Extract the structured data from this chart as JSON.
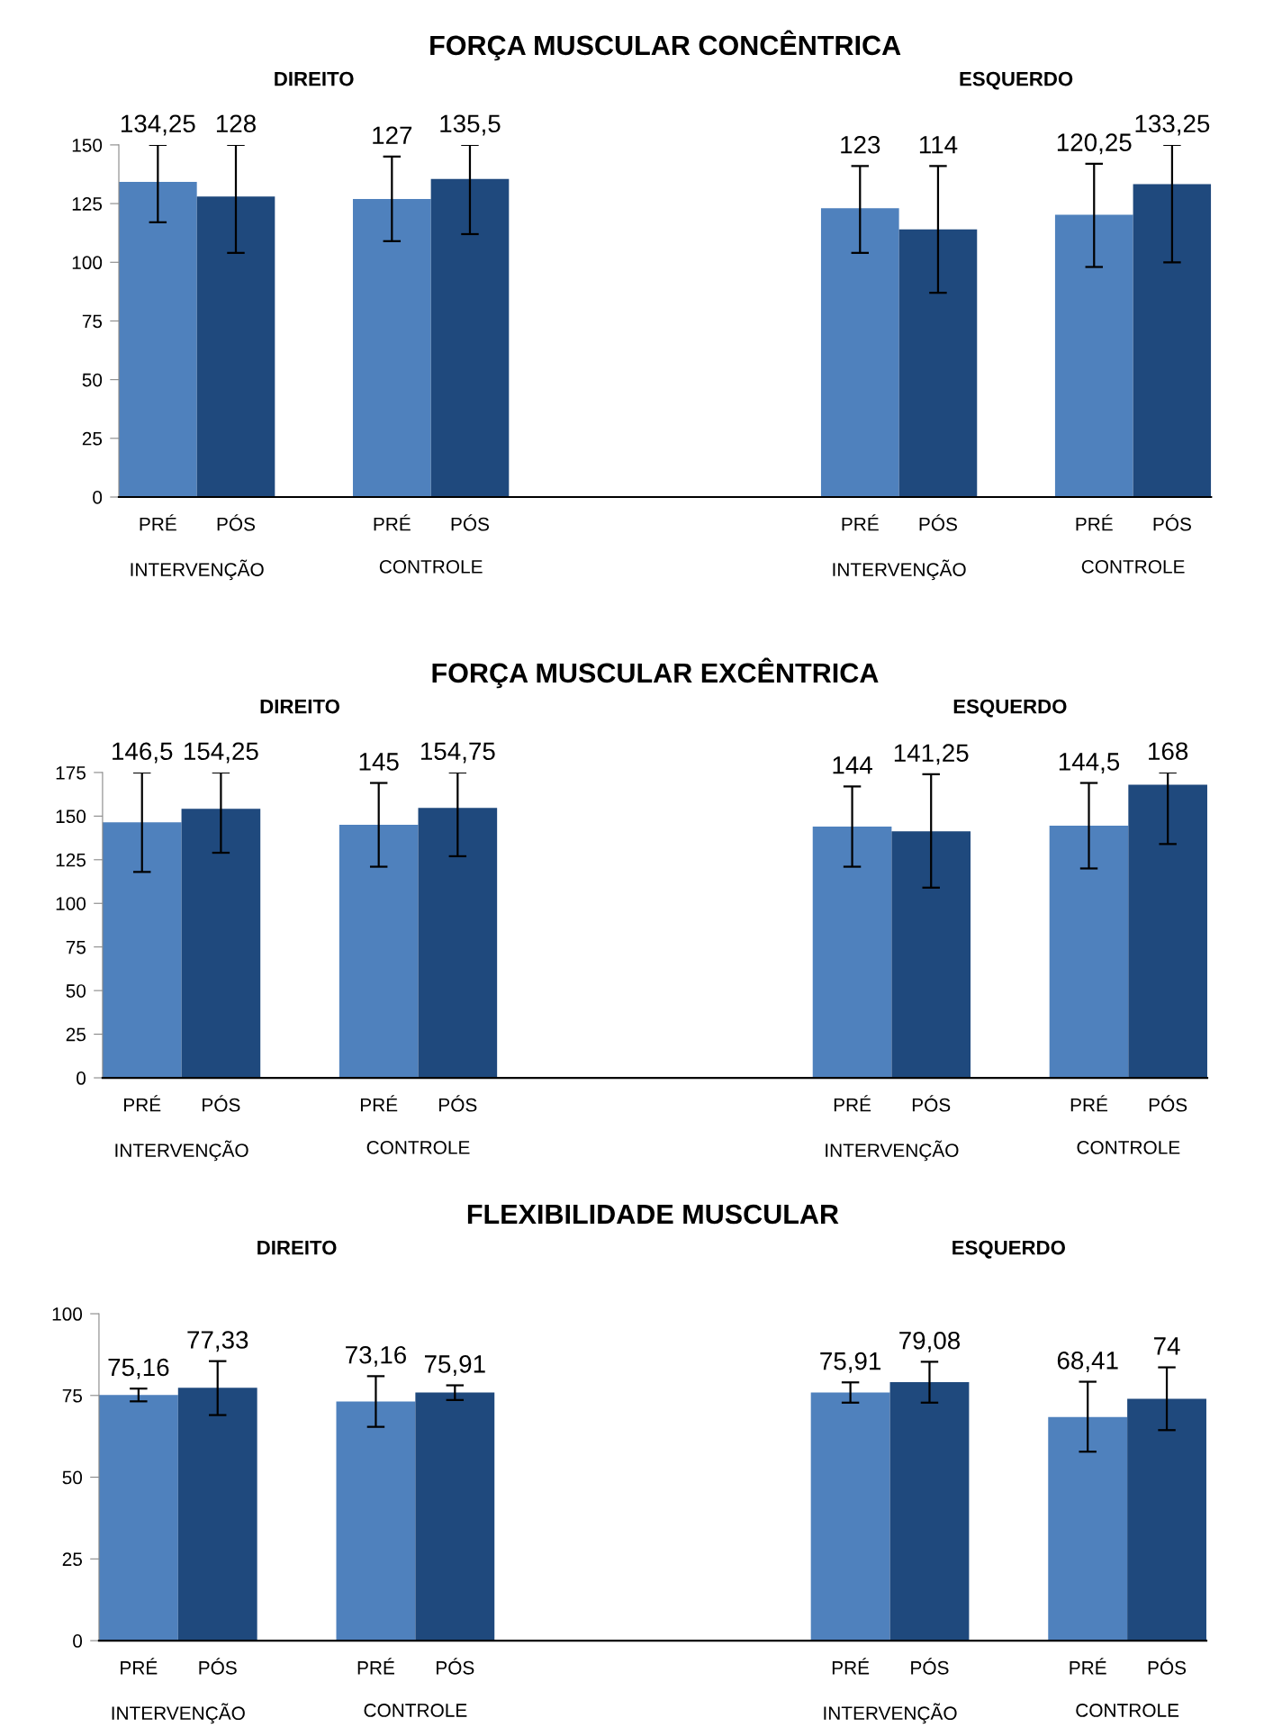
{
  "chart_data": [
    {
      "type": "bar",
      "title": "FORÇA MUSCULAR CONCÊNTRICA",
      "categories": [
        "PRÉ",
        "PÓS",
        null,
        "PRÉ",
        "PÓS",
        null,
        null,
        null,
        null,
        "PRÉ",
        "PÓS",
        null,
        "PRÉ",
        "PÓS"
      ],
      "values": [
        134.25,
        128,
        null,
        127,
        135.5,
        null,
        null,
        null,
        null,
        123,
        114,
        null,
        120.25,
        133.25
      ],
      "colors": [
        "#4f81bd",
        "#1f497d",
        null,
        "#4f81bd",
        "#1f497d",
        null,
        null,
        null,
        null,
        "#4f81bd",
        "#1f497d",
        null,
        "#4f81bd",
        "#1f497d"
      ],
      "errors": [
        [
          117,
          150
        ],
        [
          104,
          150
        ],
        null,
        [
          109,
          145
        ],
        [
          112,
          150
        ],
        null,
        null,
        null,
        null,
        [
          104,
          141
        ],
        [
          87,
          141
        ],
        null,
        [
          98,
          142
        ],
        [
          100,
          150
        ]
      ],
      "value_labels": [
        "134,25",
        "128",
        null,
        "127",
        "135,5",
        null,
        null,
        null,
        null,
        "123",
        "114",
        null,
        "120,25",
        "133,25"
      ],
      "ylim": [
        0,
        150
      ],
      "yticks": [
        0,
        25,
        50,
        75,
        100,
        125,
        150
      ],
      "annotations": [
        "DIREITO",
        "ESQUERDO",
        "INTERVENÇÃO",
        "CONTROLE",
        "INTERVENÇÃO",
        "CONTROLE"
      ]
    },
    {
      "type": "bar",
      "title": "FORÇA MUSCULAR EXCÊNTRICA",
      "categories": [
        "PRÉ",
        "PÓS",
        null,
        "PRÉ",
        "PÓS",
        null,
        null,
        null,
        null,
        "PRÉ",
        "PÓS",
        null,
        "PRÉ",
        "PÓS"
      ],
      "values": [
        146.5,
        154.25,
        null,
        145,
        154.75,
        null,
        null,
        null,
        null,
        144,
        141.25,
        null,
        144.5,
        168
      ],
      "colors": [
        "#4f81bd",
        "#1f497d",
        null,
        "#4f81bd",
        "#1f497d",
        null,
        null,
        null,
        null,
        "#4f81bd",
        "#1f497d",
        null,
        "#4f81bd",
        "#1f497d"
      ],
      "errors": [
        [
          118,
          175
        ],
        [
          129,
          175
        ],
        null,
        [
          121,
          169
        ],
        [
          127,
          175
        ],
        null,
        null,
        null,
        null,
        [
          121,
          167
        ],
        [
          109,
          174
        ],
        null,
        [
          120,
          169
        ],
        [
          134,
          175
        ]
      ],
      "value_labels": [
        "146,5",
        "154,25",
        null,
        "145",
        "154,75",
        null,
        null,
        null,
        null,
        "144",
        "141,25",
        null,
        "144,5",
        "168"
      ],
      "ylim": [
        0,
        175
      ],
      "yticks": [
        0,
        25,
        50,
        75,
        100,
        125,
        150,
        175
      ],
      "annotations": [
        "DIREITO",
        "ESQUERDO",
        "INTERVENÇÃO",
        "CONTROLE",
        "INTERVENÇÃO",
        "CONTROLE"
      ]
    },
    {
      "type": "bar",
      "title": "FLEXIBILIDADE MUSCULAR",
      "categories": [
        "PRÉ",
        "PÓS",
        null,
        "PRÉ",
        "PÓS",
        null,
        null,
        null,
        null,
        "PRÉ",
        "PÓS",
        null,
        "PRÉ",
        "PÓS"
      ],
      "values": [
        75.16,
        77.33,
        null,
        73.16,
        75.91,
        null,
        null,
        null,
        null,
        75.91,
        79.08,
        null,
        68.41,
        74
      ],
      "colors": [
        "#4f81bd",
        "#1f497d",
        null,
        "#4f81bd",
        "#1f497d",
        null,
        null,
        null,
        null,
        "#4f81bd",
        "#1f497d",
        null,
        "#4f81bd",
        "#1f497d"
      ],
      "errors": [
        [
          73.2,
          77.1
        ],
        [
          69,
          85.5
        ],
        null,
        [
          65.4,
          80.9
        ],
        [
          73.6,
          78.1
        ],
        null,
        null,
        null,
        null,
        [
          72.8,
          79
        ],
        [
          72.8,
          85.3
        ],
        null,
        [
          57.8,
          79.2
        ],
        [
          64.4,
          83.6
        ]
      ],
      "value_labels": [
        "75,16",
        "77,33",
        null,
        "73,16",
        "75,91",
        null,
        null,
        null,
        null,
        "75,91",
        "79,08",
        null,
        "68,41",
        "74"
      ],
      "ylim": [
        0,
        100
      ],
      "yticks": [
        0,
        25,
        50,
        75,
        100
      ],
      "annotations": [
        "DIREITO",
        "ESQUERDO",
        "INTERVENÇÃO",
        "CONTROLE",
        "INTERVENÇÃO",
        "CONTROLE"
      ]
    }
  ]
}
